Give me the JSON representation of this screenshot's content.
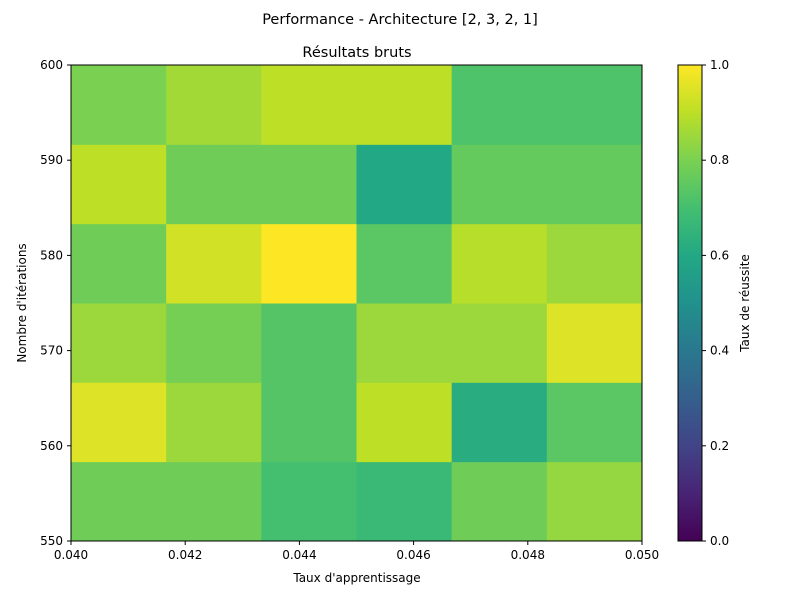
{
  "figure": {
    "suptitle": "Performance - Architecture [2, 3, 2, 1]"
  },
  "chart_data": {
    "type": "heatmap",
    "title": "Résultats bruts",
    "xlabel": "Taux d'apprentissage",
    "ylabel": "Nombre d'itérations",
    "xlim": [
      0.04,
      0.05
    ],
    "ylim": [
      550,
      600
    ],
    "xticks": [
      "0.040",
      "0.042",
      "0.044",
      "0.046",
      "0.048",
      "0.050"
    ],
    "yticks": [
      "550",
      "560",
      "570",
      "580",
      "590",
      "600"
    ],
    "n_cols": 6,
    "n_rows": 6,
    "rows_bottom_to_top": [
      [
        0.78,
        0.78,
        0.7,
        0.67,
        0.78,
        0.84
      ],
      [
        0.95,
        0.85,
        0.73,
        0.9,
        0.62,
        0.74
      ],
      [
        0.85,
        0.79,
        0.73,
        0.85,
        0.85,
        0.95
      ],
      [
        0.78,
        0.93,
        1.0,
        0.74,
        0.89,
        0.85
      ],
      [
        0.9,
        0.78,
        0.78,
        0.6,
        0.76,
        0.76
      ],
      [
        0.8,
        0.86,
        0.9,
        0.9,
        0.72,
        0.72
      ]
    ],
    "colorbar": {
      "label": "Taux de réussite",
      "vmin": 0.0,
      "vmax": 1.0,
      "ticks": [
        "0.0",
        "0.2",
        "0.4",
        "0.6",
        "0.8",
        "1.0"
      ],
      "colormap": "viridis"
    },
    "grid": false,
    "legend": "none"
  }
}
